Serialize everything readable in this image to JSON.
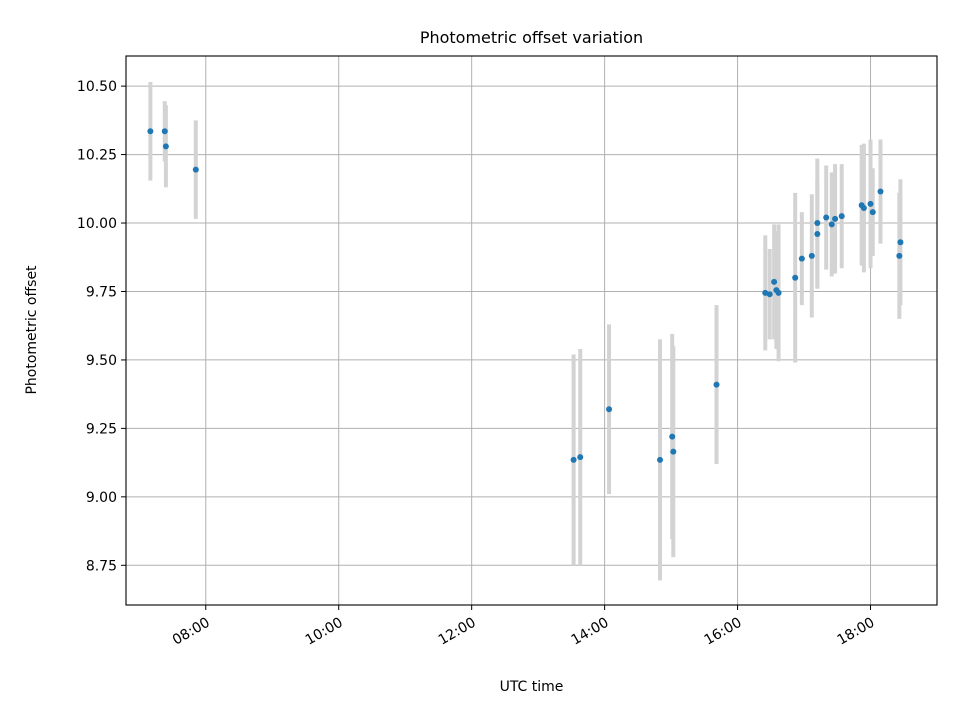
{
  "chart_data": {
    "type": "scatter",
    "title": "Photometric offset variation",
    "xlabel": "UTC time",
    "ylabel": "Photometric offset",
    "xlim": [
      "06:48",
      "19:00"
    ],
    "ylim": [
      8.605,
      10.61
    ],
    "x_ticks": [
      "08:00",
      "10:00",
      "12:00",
      "14:00",
      "16:00",
      "18:00"
    ],
    "y_ticks": [
      "8.75",
      "9.00",
      "9.25",
      "9.50",
      "9.75",
      "10.00",
      "10.25",
      "10.50"
    ],
    "grid": true,
    "point_color": "#1f77b4",
    "errorbar_color": "#d3d3d3",
    "points": [
      {
        "x": "07:10",
        "y": 10.335,
        "err": 0.18
      },
      {
        "x": "07:23",
        "y": 10.335,
        "err": 0.11
      },
      {
        "x": "07:24",
        "y": 10.28,
        "err": 0.15
      },
      {
        "x": "07:51",
        "y": 10.195,
        "err": 0.18
      },
      {
        "x": "13:32",
        "y": 9.135,
        "err": 0.385
      },
      {
        "x": "13:38",
        "y": 9.145,
        "err": 0.395
      },
      {
        "x": "14:04",
        "y": 9.32,
        "err": 0.31
      },
      {
        "x": "14:50",
        "y": 9.135,
        "err": 0.44
      },
      {
        "x": "15:01",
        "y": 9.22,
        "err": 0.375
      },
      {
        "x": "15:02",
        "y": 9.165,
        "err": 0.385
      },
      {
        "x": "15:41",
        "y": 9.41,
        "err": 0.29
      },
      {
        "x": "16:25",
        "y": 9.745,
        "err": 0.21
      },
      {
        "x": "16:29",
        "y": 9.74,
        "err": 0.165
      },
      {
        "x": "16:33",
        "y": 9.785,
        "err": 0.21
      },
      {
        "x": "16:35",
        "y": 9.755,
        "err": 0.215
      },
      {
        "x": "16:37",
        "y": 9.745,
        "err": 0.25
      },
      {
        "x": "16:52",
        "y": 9.8,
        "err": 0.31
      },
      {
        "x": "16:58",
        "y": 9.87,
        "err": 0.17
      },
      {
        "x": "17:07",
        "y": 9.88,
        "err": 0.225
      },
      {
        "x": "17:12",
        "y": 10.0,
        "err": 0.235
      },
      {
        "x": "17:12",
        "y": 9.96,
        "err": 0.2
      },
      {
        "x": "17:20",
        "y": 10.02,
        "err": 0.19
      },
      {
        "x": "17:25",
        "y": 9.995,
        "err": 0.19
      },
      {
        "x": "17:28",
        "y": 10.015,
        "err": 0.2
      },
      {
        "x": "17:34",
        "y": 10.025,
        "err": 0.19
      },
      {
        "x": "17:52",
        "y": 10.065,
        "err": 0.22
      },
      {
        "x": "17:54",
        "y": 10.055,
        "err": 0.235
      },
      {
        "x": "18:00",
        "y": 10.07,
        "err": 0.235
      },
      {
        "x": "18:02",
        "y": 10.04,
        "err": 0.16
      },
      {
        "x": "18:09",
        "y": 10.115,
        "err": 0.19
      },
      {
        "x": "18:26",
        "y": 9.88,
        "err": 0.23
      },
      {
        "x": "18:27",
        "y": 9.93,
        "err": 0.23
      }
    ]
  }
}
